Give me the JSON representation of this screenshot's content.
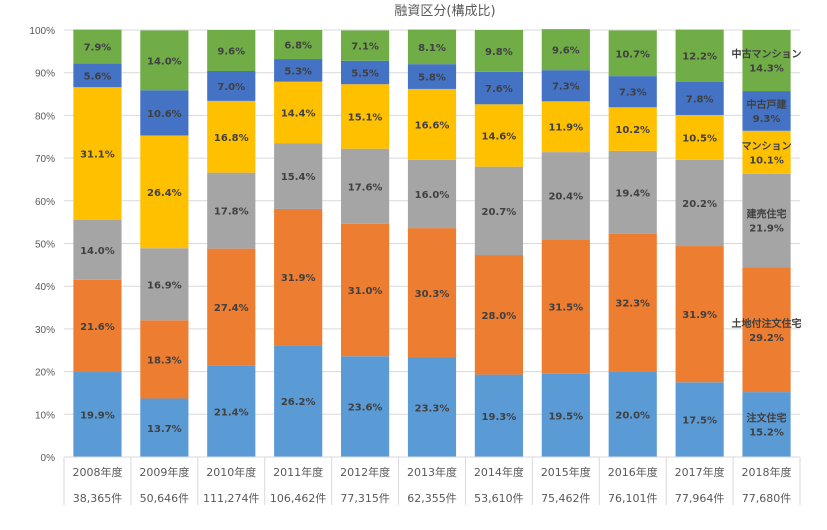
{
  "chart_data": {
    "type": "bar",
    "stacked": true,
    "title": "融資区分(構成比)",
    "xlabel": "",
    "ylabel": "",
    "ylim": [
      0,
      100
    ],
    "yticks": [
      "0%",
      "10%",
      "20%",
      "30%",
      "40%",
      "50%",
      "60%",
      "70%",
      "80%",
      "90%",
      "100%"
    ],
    "grid": true,
    "categories": [
      "2008年度",
      "2009年度",
      "2010年度",
      "2011年度",
      "2012年度",
      "2013年度",
      "2014年度",
      "2015年度",
      "2016年度",
      "2017年度",
      "2018年度"
    ],
    "counts": [
      "38,365件",
      "50,646件",
      "111,274件",
      "106,462件",
      "77,315件",
      "62,355件",
      "53,610件",
      "75,462件",
      "76,101件",
      "77,964件",
      "77,680件"
    ],
    "legend": "inline-last-bar",
    "series": [
      {
        "name": "注文住宅",
        "color": "#5B9BD5",
        "values": [
          19.9,
          13.7,
          21.4,
          26.2,
          23.6,
          23.3,
          19.3,
          19.5,
          20.0,
          17.5,
          15.2
        ]
      },
      {
        "name": "土地付注文住宅",
        "color": "#ED7D31",
        "values": [
          21.6,
          18.3,
          27.4,
          31.9,
          31.0,
          30.3,
          28.0,
          31.5,
          32.3,
          31.9,
          29.2
        ]
      },
      {
        "name": "建売住宅",
        "color": "#A5A5A5",
        "values": [
          14.0,
          16.9,
          17.8,
          15.4,
          17.6,
          16.0,
          20.7,
          20.4,
          19.4,
          20.2,
          21.9
        ]
      },
      {
        "name": "マンション",
        "color": "#FFC000",
        "values": [
          31.1,
          26.4,
          16.8,
          14.4,
          15.1,
          16.6,
          14.6,
          11.9,
          10.2,
          10.5,
          10.1
        ]
      },
      {
        "name": "中古戸建",
        "color": "#4472C4",
        "values": [
          5.6,
          10.6,
          7.0,
          5.3,
          5.5,
          5.8,
          7.6,
          7.3,
          7.3,
          7.8,
          9.3
        ]
      },
      {
        "name": "中古マンション",
        "color": "#70AD47",
        "values": [
          7.9,
          14.0,
          9.6,
          6.8,
          7.1,
          8.1,
          9.8,
          9.6,
          10.7,
          12.2,
          14.3
        ]
      }
    ]
  }
}
